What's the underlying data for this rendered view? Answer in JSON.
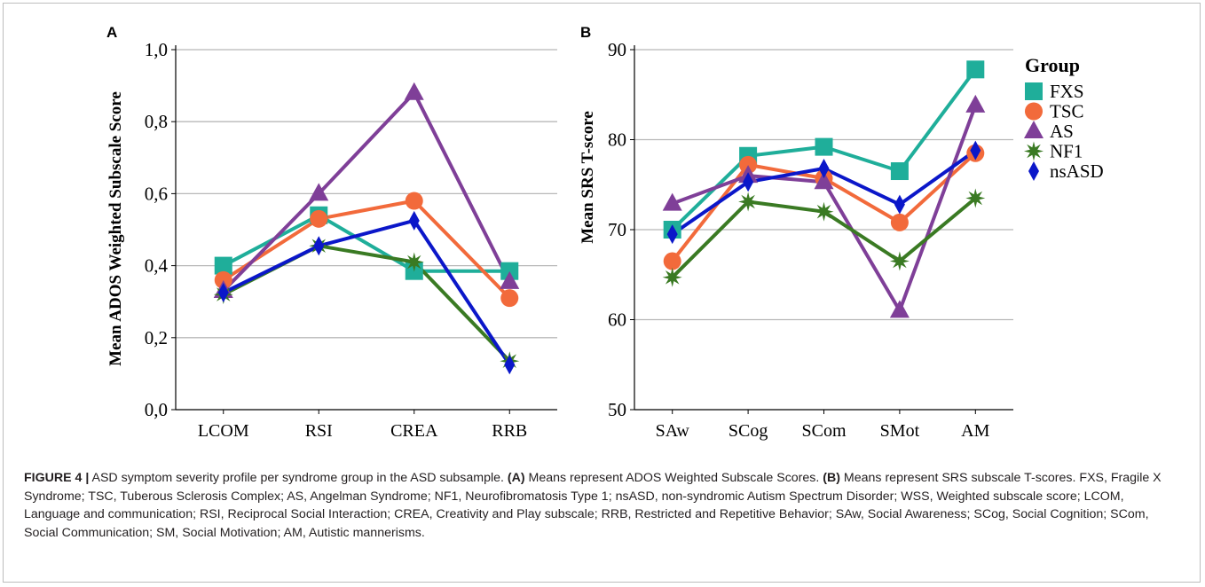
{
  "chart_data": [
    {
      "type": "line",
      "panel_label": "A",
      "ylabel": "Mean ADOS Weighted Subscale Score",
      "categories": [
        "LCOM",
        "RSI",
        "CREA",
        "RRB"
      ],
      "ylim": [
        0,
        1.0
      ],
      "yticks": [
        "0,0",
        "0,2",
        "0,4",
        "0,6",
        "0,8",
        "1,0"
      ],
      "grid": true,
      "series": [
        {
          "name": "FXS",
          "color": "#1fae9a",
          "marker": "square",
          "values": [
            0.4,
            0.54,
            0.385,
            0.385
          ]
        },
        {
          "name": "TSC",
          "color": "#f26a3b",
          "marker": "circle",
          "values": [
            0.36,
            0.53,
            0.58,
            0.31
          ]
        },
        {
          "name": "AS",
          "color": "#7f3f98",
          "marker": "triangle",
          "values": [
            0.33,
            0.6,
            0.88,
            0.355
          ]
        },
        {
          "name": "NF1",
          "color": "#3a7a23",
          "marker": "star",
          "values": [
            0.32,
            0.455,
            0.41,
            0.135
          ]
        },
        {
          "name": "nsASD",
          "color": "#0b17c9",
          "marker": "diamond",
          "values": [
            0.325,
            0.455,
            0.525,
            0.125
          ]
        }
      ]
    },
    {
      "type": "line",
      "panel_label": "B",
      "ylabel": "Mean SRS T-score",
      "categories": [
        "SAw",
        "SCog",
        "SCom",
        "SMot",
        "AM"
      ],
      "ylim": [
        50,
        90
      ],
      "yticks": [
        "50",
        "60",
        "70",
        "80",
        "90"
      ],
      "grid": true,
      "legend_position": "right",
      "legend_title": "Group",
      "series": [
        {
          "name": "FXS",
          "color": "#1fae9a",
          "marker": "square",
          "values": [
            70.0,
            78.2,
            79.2,
            76.5,
            87.8
          ]
        },
        {
          "name": "TSC",
          "color": "#f26a3b",
          "marker": "circle",
          "values": [
            66.5,
            77.2,
            75.7,
            70.8,
            78.5
          ]
        },
        {
          "name": "AS",
          "color": "#7f3f98",
          "marker": "triangle",
          "values": [
            72.9,
            76.0,
            75.3,
            61.0,
            83.8
          ]
        },
        {
          "name": "NF1",
          "color": "#3a7a23",
          "marker": "star",
          "values": [
            64.7,
            73.1,
            72.0,
            66.5,
            73.5
          ]
        },
        {
          "name": "nsASD",
          "color": "#0b17c9",
          "marker": "diamond",
          "values": [
            69.5,
            75.3,
            76.8,
            72.8,
            78.8
          ]
        }
      ]
    }
  ],
  "caption": {
    "label": "FIGURE 4 |",
    "intro": " ASD symptom severity profile per syndrome group in the ASD subsample. ",
    "a_label": "(A)",
    "a_text": " Means represent ADOS Weighted Subscale Scores. ",
    "b_label": "(B)",
    "b_text": " Means represent SRS subscale T-scores. FXS, Fragile X Syndrome; TSC, Tuberous Sclerosis Complex; AS, Angelman Syndrome; NF1, Neurofibromatosis Type 1; nsASD, non-syndromic Autism Spectrum Disorder; WSS, Weighted subscale score; LCOM, Language and communication; RSI, Reciprocal Social Interaction; CREA, Creativity and Play subscale; RRB, Restricted and Repetitive Behavior; SAw, Social Awareness; SCog, Social Cognition; SCom, Social Communication; SM, Social Motivation; AM, Autistic mannerisms."
  }
}
